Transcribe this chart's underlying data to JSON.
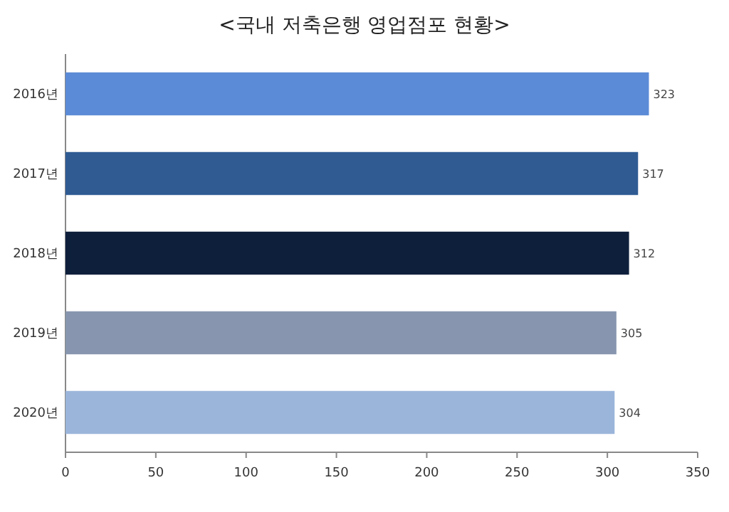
{
  "chart_data": {
    "type": "bar",
    "orientation": "horizontal",
    "title": "<국내 저축은행 영업점포 현황>",
    "categories": [
      "2016년",
      "2017년",
      "2018년",
      "2019년",
      "2020년"
    ],
    "values": [
      323,
      317,
      312,
      305,
      304
    ],
    "colors": [
      "#5b8bd6",
      "#2f5b92",
      "#0e1f3b",
      "#8796ae",
      "#9bb5da"
    ],
    "xlim": [
      0,
      350
    ],
    "xticks": [
      0,
      50,
      100,
      150,
      200,
      250,
      300,
      350
    ],
    "data_labels": true,
    "grid": false
  }
}
